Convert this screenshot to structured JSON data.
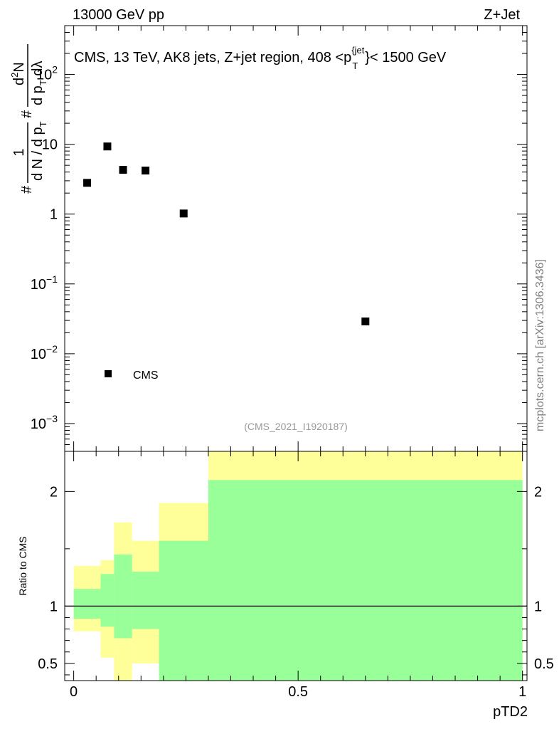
{
  "header": {
    "left_label": "13000 GeV pp",
    "right_label": "Z+Jet"
  },
  "watermark": "mcplots.cern.ch [arXiv:1306.3436]",
  "analysis_tag": "(CMS_2021_I1920187)",
  "colors": {
    "marker": "#000000",
    "band_outer": "#ffff99",
    "band_inner": "#99ff99",
    "analysis_tag": "#999999",
    "watermark": "#808080"
  },
  "chart_data": [
    {
      "type": "scatter",
      "title": "CMS, 13 TeV, AK8 jets, Z+jet region, 408 <p_T^{jet}< 1500 GeV",
      "title_parts": {
        "lead": "CMS, 13 TeV, AK8 jets, Z+jet region, 408 <p",
        "sup": "{jet",
        "sub": "T",
        "tail": "}< 1500 GeV"
      },
      "ylabel": {
        "prefix": "#",
        "frac1_num": "1",
        "frac1_den": "d N / d p",
        "frac1_den_sub": "T",
        "mid": "#",
        "frac2_num": "d",
        "frac2_num_sup": "2",
        "frac2_num_tail": "N",
        "frac2_den": "d p",
        "frac2_den_sub": "T",
        "frac2_den_tail": " dλ"
      },
      "x_range": [
        -0.02,
        1.01
      ],
      "y_scale": "log",
      "y_range": [
        0.0004,
        500
      ],
      "y_ticks": [
        {
          "value": 0.001,
          "base": "10",
          "exp": "−3"
        },
        {
          "value": 0.01,
          "base": "10",
          "exp": "−2"
        },
        {
          "value": 0.1,
          "base": "10",
          "exp": "−1"
        },
        {
          "value": 1,
          "label": "1"
        },
        {
          "value": 10,
          "label": "10"
        },
        {
          "value": 100,
          "base": "10",
          "exp": "2"
        }
      ],
      "series": [
        {
          "name": "CMS",
          "points": [
            {
              "x": 0.03,
              "y": 2.8
            },
            {
              "x": 0.075,
              "y": 9.3
            },
            {
              "x": 0.11,
              "y": 4.3
            },
            {
              "x": 0.16,
              "y": 4.2
            },
            {
              "x": 0.245,
              "y": 1.02
            },
            {
              "x": 0.65,
              "y": 0.029
            }
          ]
        }
      ],
      "legend": {
        "position": "bottom-left",
        "entries": [
          "CMS"
        ]
      }
    },
    {
      "type": "area",
      "ylabel": "Ratio to CMS",
      "xlabel": "pTD2",
      "x_range": [
        -0.02,
        1.01
      ],
      "y_range": [
        0.35,
        2.35
      ],
      "x_ticks": [
        {
          "value": 0,
          "label": "0"
        },
        {
          "value": 0.5,
          "label": "0.5"
        },
        {
          "value": 1,
          "label": "1"
        }
      ],
      "y_ticks": [
        {
          "value": 0.5,
          "label": "0.5"
        },
        {
          "value": 1,
          "label": "1"
        },
        {
          "value": 2,
          "label": "2"
        }
      ],
      "reference_line": 1,
      "bins": [
        {
          "x0": 0.0,
          "x1": 0.06,
          "outer": [
            0.78,
            1.35
          ],
          "inner": [
            0.89,
            1.15
          ]
        },
        {
          "x0": 0.06,
          "x1": 0.09,
          "outer": [
            0.55,
            1.4
          ],
          "inner": [
            0.82,
            1.28
          ]
        },
        {
          "x0": 0.09,
          "x1": 0.13,
          "outer": [
            0.35,
            1.73
          ],
          "inner": [
            0.72,
            1.45
          ]
        },
        {
          "x0": 0.13,
          "x1": 0.19,
          "outer": [
            0.5,
            1.57
          ],
          "inner": [
            0.8,
            1.3
          ]
        },
        {
          "x0": 0.19,
          "x1": 0.3,
          "outer": [
            0.35,
            1.9
          ],
          "inner": [
            0.35,
            1.57
          ]
        },
        {
          "x0": 0.3,
          "x1": 1.0,
          "outer": [
            0.35,
            2.35
          ],
          "inner": [
            0.35,
            2.1
          ]
        }
      ]
    }
  ]
}
